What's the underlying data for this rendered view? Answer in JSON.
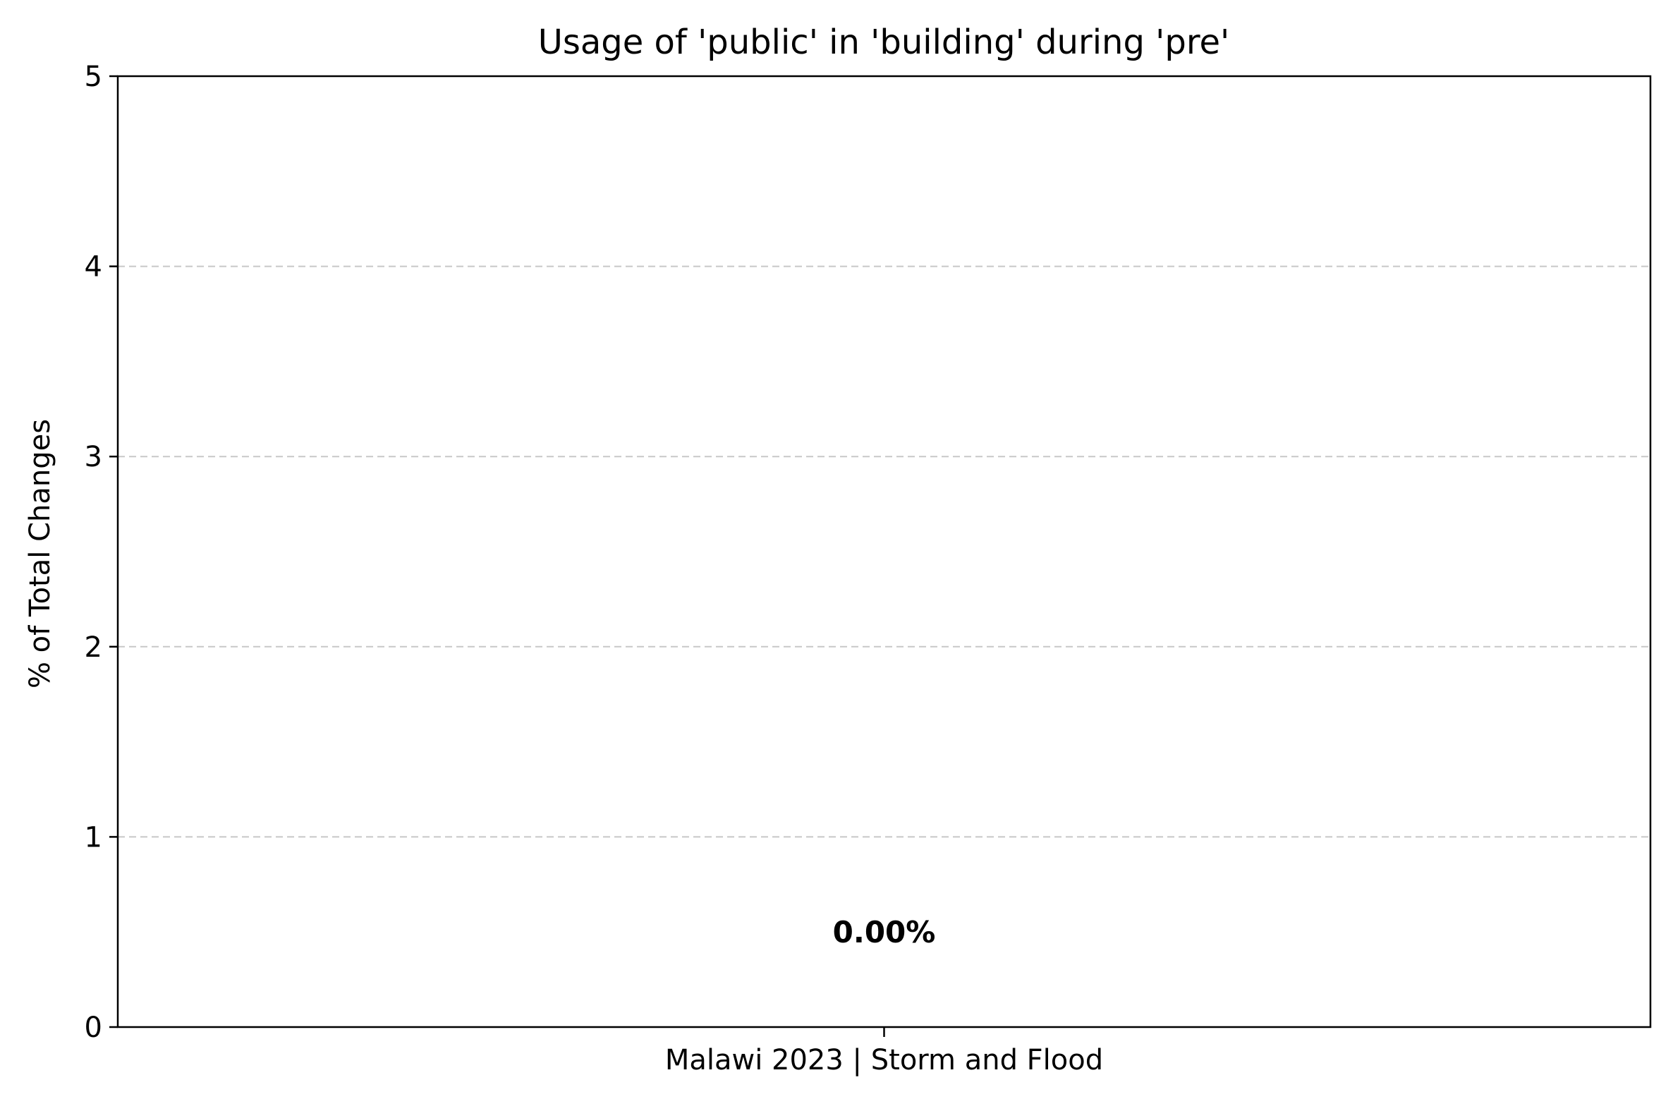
{
  "chart_data": {
    "type": "bar",
    "title": "Usage of 'public' in 'building' during 'pre'",
    "xlabel": "",
    "ylabel": "% of Total Changes",
    "categories": [
      "Malawi 2023 | Storm and Flood"
    ],
    "values": [
      0.0
    ],
    "data_labels": [
      "0.00%"
    ],
    "ylim": [
      0,
      5
    ],
    "yticks": [
      "0",
      "1",
      "2",
      "3",
      "4",
      "5"
    ],
    "grid": "y-dashed",
    "legend": "none"
  }
}
